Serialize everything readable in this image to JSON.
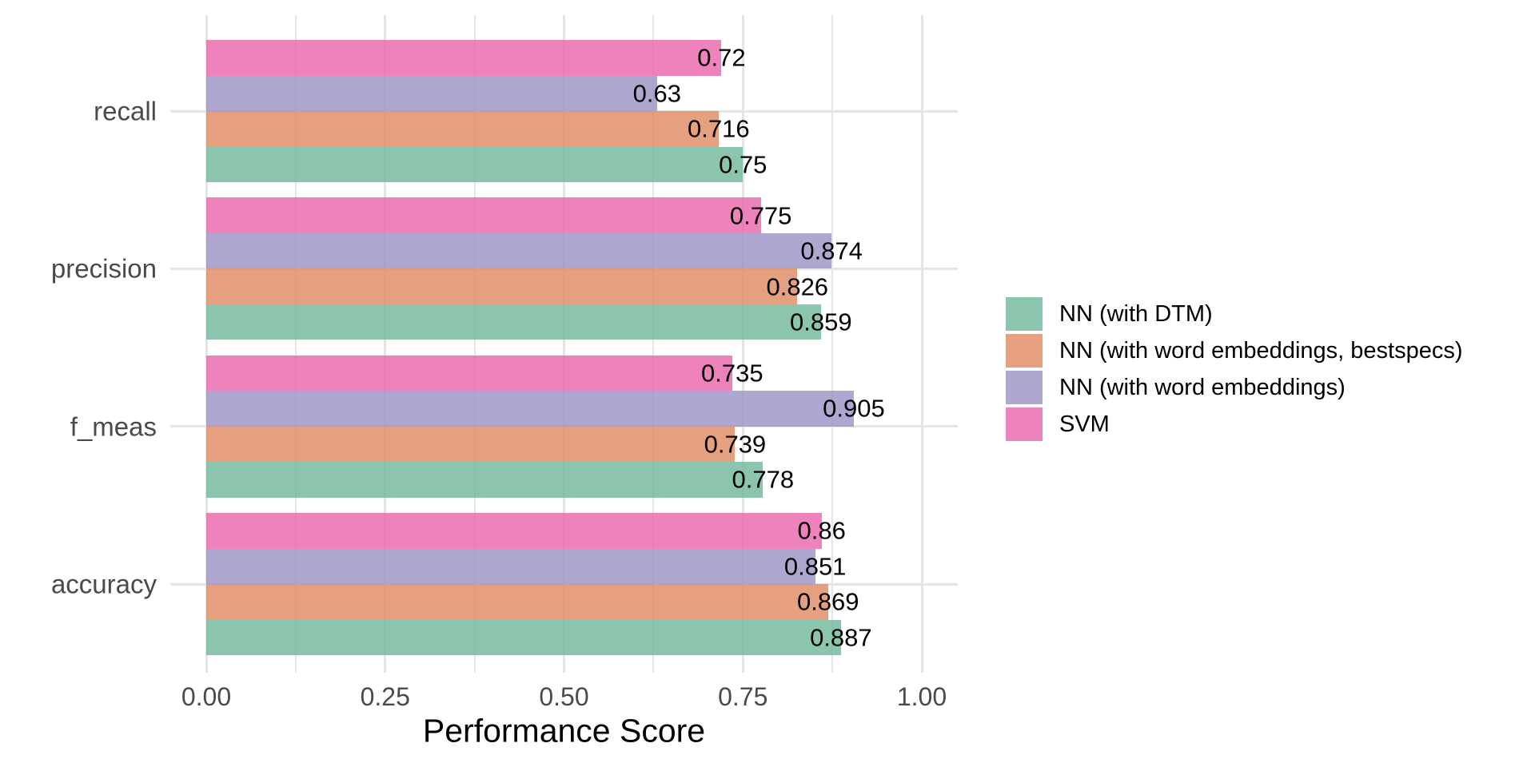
{
  "chart_data": {
    "type": "bar",
    "orientation": "horizontal",
    "title": "",
    "xlabel": "Performance Score",
    "ylabel": "",
    "xlim": [
      0,
      1.05
    ],
    "x_tick_values": [
      0,
      0.25,
      0.5,
      0.75,
      1.0
    ],
    "x_tick_labels": [
      "0.00",
      "0.25",
      "0.50",
      "0.75",
      "1.00"
    ],
    "minor_gridline_step": 0.125,
    "grid": true,
    "legend_position": "right",
    "categories": [
      "recall",
      "precision",
      "f_meas",
      "accuracy"
    ],
    "categories_note": "listed top to bottom on the y axis",
    "series": [
      {
        "name": "NN (with DTM)",
        "color": "#6EB799",
        "alpha": 0.8,
        "values": [
          0.75,
          0.859,
          0.778,
          0.887
        ],
        "labels": [
          "0.75",
          "0.859",
          "0.778",
          "0.887"
        ]
      },
      {
        "name": "NN (with word embeddings, bestspecs)",
        "color": "#DF8A5F",
        "alpha": 0.8,
        "values": [
          0.716,
          0.826,
          0.739,
          0.869
        ],
        "labels": [
          "0.716",
          "0.826",
          "0.739",
          "0.869"
        ]
      },
      {
        "name": "NN (with word embeddings)",
        "color": "#9B91C4",
        "alpha": 0.8,
        "values": [
          0.63,
          0.874,
          0.905,
          0.851
        ],
        "labels": [
          "0.63",
          "0.874",
          "0.905",
          "0.851"
        ]
      },
      {
        "name": "SVM",
        "color": "#EA63AA",
        "alpha": 0.8,
        "values": [
          0.72,
          0.775,
          0.735,
          0.86
        ],
        "labels": [
          "0.72",
          "0.775",
          "0.735",
          "0.86"
        ]
      }
    ],
    "bar_order_top_to_bottom_within_group": [
      "SVM",
      "NN (with word embeddings)",
      "NN (with word embeddings, bestspecs)",
      "NN (with DTM)"
    ],
    "style_colors": {
      "gridline": "#E5E5E5",
      "axis_text": "#4A4A4A",
      "title_text": "#000000",
      "value_label_text": "#000000",
      "background": "#FFFFFF"
    }
  }
}
